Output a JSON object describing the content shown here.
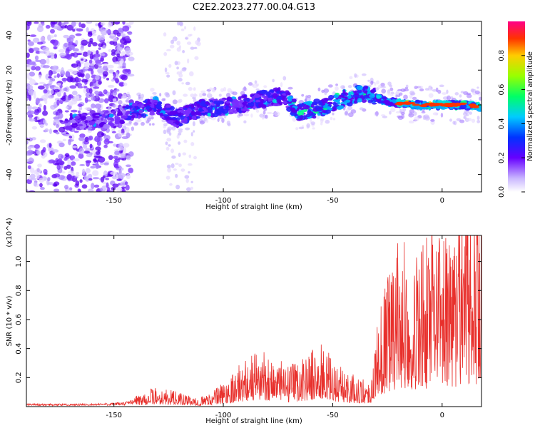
{
  "title": "C2E2.2023.277.00.04.G13",
  "chart_data": [
    {
      "type": "heatmap",
      "xlabel": "Height of straight line (km)",
      "ylabel": "Frequency (Hz)",
      "xlim": [
        -190,
        18
      ],
      "ylim": [
        -50,
        48
      ],
      "xticks": [
        "-150",
        "-100",
        "-50",
        "0"
      ],
      "xtick_values": [
        -150,
        -100,
        -50,
        0
      ],
      "yticks": [
        "-40",
        "-20",
        "0",
        "20",
        "40"
      ],
      "ytick_values": [
        -40,
        -20,
        0,
        20,
        40
      ],
      "colorbar": {
        "label": "Normalized spectral amplitude",
        "range": [
          0,
          1
        ],
        "ticks": [
          "0.0",
          "0.2",
          "0.4",
          "0.6",
          "0.8"
        ],
        "tick_values": [
          0,
          0.2,
          0.4,
          0.6,
          0.8
        ]
      },
      "ridge": {
        "x": [
          -168,
          -158,
          -150,
          -140,
          -130,
          -122,
          -110,
          -100,
          -90,
          -80,
          -72,
          -66,
          -60,
          -54,
          -48,
          -40,
          -34,
          -28,
          -20,
          -10,
          0,
          10,
          18
        ],
        "y": [
          -10,
          -9,
          -8,
          -3,
          0,
          -8,
          -2,
          -1,
          1,
          4,
          5,
          -4,
          -3,
          -1,
          2,
          6,
          7,
          3,
          1,
          0,
          0,
          0,
          -1
        ]
      }
    },
    {
      "type": "line",
      "xlabel": "Height of straight line (km)",
      "ylabel": "SNR (10 * v/v)",
      "y_multiplier": "(x10^4)",
      "xlim": [
        -190,
        18
      ],
      "ylim": [
        0,
        1.18
      ],
      "xticks": [
        "-150",
        "-100",
        "-50",
        "0"
      ],
      "xtick_values": [
        -150,
        -100,
        -50,
        0
      ],
      "yticks": [
        "0.2",
        "0.4",
        "0.6",
        "0.8",
        "1.0"
      ],
      "ytick_values": [
        0.2,
        0.4,
        0.6,
        0.8,
        1.0
      ],
      "color": "#e8302c",
      "envelope": {
        "x": [
          -190,
          -160,
          -145,
          -140,
          -132,
          -122,
          -112,
          -105,
          -98,
          -90,
          -83,
          -76,
          -70,
          -62,
          -55,
          -48,
          -40,
          -33,
          -30,
          -28,
          -25,
          -22,
          -18,
          -12,
          -6,
          0,
          5,
          10,
          14,
          18
        ],
        "y": [
          0.02,
          0.02,
          0.03,
          0.06,
          0.1,
          0.08,
          0.04,
          0.08,
          0.15,
          0.25,
          0.3,
          0.26,
          0.2,
          0.28,
          0.32,
          0.22,
          0.16,
          0.14,
          0.4,
          0.55,
          0.65,
          0.75,
          0.82,
          0.78,
          0.82,
          0.88,
          0.9,
          0.95,
          0.98,
          0.95
        ]
      }
    }
  ]
}
